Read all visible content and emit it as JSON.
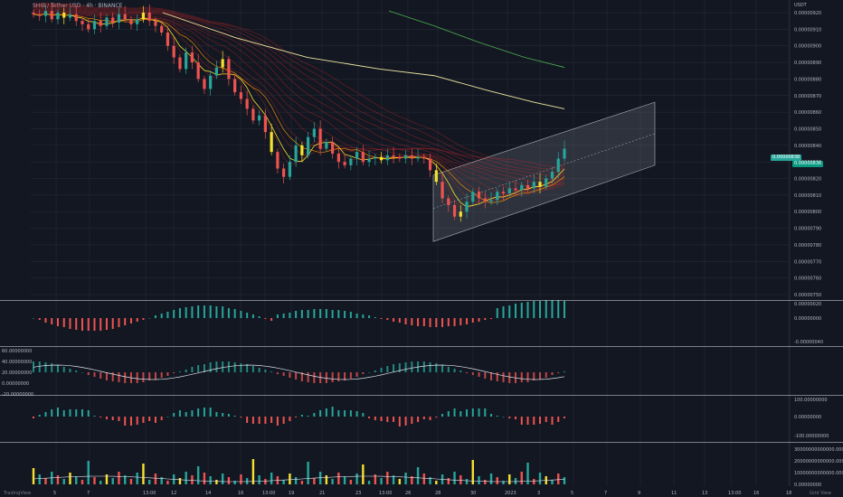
{
  "header": {
    "symbol_line": "SHIB / Tether USD · 4h · BINANCE"
  },
  "axis": {
    "currency": "USDT",
    "main_ticks": [
      "0.00000920",
      "0.00000910",
      "0.00000900",
      "0.00000890",
      "0.00000880",
      "0.00000870",
      "0.00000860",
      "0.00000850",
      "0.00000840",
      "0.00000830",
      "0.00000820",
      "0.00000810",
      "0.00000800",
      "0.00000790",
      "0.00000780",
      "0.00000770",
      "0.00000760",
      "0.00000750"
    ],
    "macd_ticks": [
      "0.00000020",
      "0.00000000",
      "-0.00000040"
    ],
    "rsi_ticks": [
      "60.00000000",
      "40.00000000",
      "20.00000000",
      "0.00000000",
      "-20.00000000"
    ],
    "osc_ticks": [
      "100.00000000",
      "0.00000000",
      "-100.00000000"
    ],
    "vol_ticks": [
      "30000000000000.00000000",
      "20000000000000.00000000",
      "10000000000000.00000000",
      "0.00000000"
    ],
    "time_ticks": [
      "5",
      "7",
      "13:00",
      "12",
      "14",
      "16",
      "13:00",
      "19",
      "21",
      "23",
      "13:00",
      "26",
      "28",
      "30",
      "2023",
      "3",
      "5",
      "7",
      "9",
      "11",
      "13",
      "13:00",
      "16",
      "18"
    ]
  },
  "price_tags": {
    "last": "0.00000838",
    "second": "0.00000836",
    "accent": "#26a69a",
    "accent2": "#089981"
  },
  "footer": {
    "left": "TradingView",
    "right": "Grid View"
  },
  "colors": {
    "bg": "#131722",
    "up": "#26a69a",
    "down": "#ef5350",
    "yellow": "#f5e12e",
    "ma_cream": "#ede6a0",
    "ma_green": "#4caf50",
    "ribbon_red": "#c62828",
    "channel": "#787b86"
  },
  "chart_data": {
    "type": "candlestick",
    "title": "SHIB / Tether USD · 4h · BINANCE",
    "ylim": [
      7.5e-06,
      9.25e-06
    ],
    "series": [
      {
        "name": "SHIB/USDT",
        "values": [
          919,
          918,
          921,
          916,
          920,
          917,
          919,
          915,
          913,
          910,
          915,
          912,
          917,
          914,
          919,
          916,
          913,
          916,
          920,
          915,
          912,
          908,
          900,
          893,
          886,
          896,
          890,
          880,
          874,
          882,
          887,
          892,
          880,
          872,
          868,
          862,
          855,
          858,
          848,
          836,
          826,
          821,
          830,
          840,
          834,
          845,
          850,
          838,
          842,
          835,
          830,
          828,
          832,
          836,
          830,
          832,
          833,
          831,
          834,
          833,
          832,
          834,
          832,
          833,
          832,
          825,
          818,
          808,
          804,
          797,
          800,
          806,
          812,
          808,
          806,
          807,
          812,
          811,
          814,
          813,
          816,
          814,
          818,
          815,
          820,
          824,
          832,
          838
        ]
      }
    ],
    "regression_channel": {
      "start": "upper 0.00000822 / lower 0.00000782",
      "end": "upper 0.00000866 / lower 0.00000828"
    }
  }
}
